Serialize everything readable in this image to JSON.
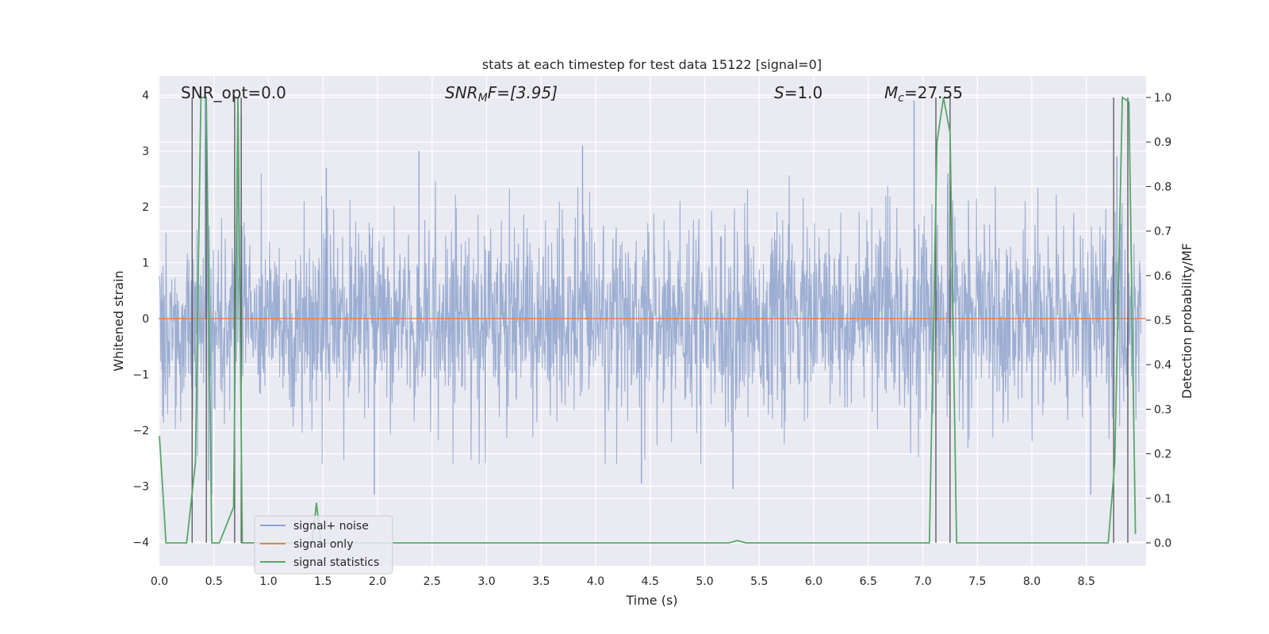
{
  "chart_data": {
    "type": "line",
    "title": "stats at each timestep for test data 15122 [signal=0]",
    "xlabel": "Time (s)",
    "ylabel": "Whitened strain",
    "y2label": "Detection probability/MF",
    "xlim": [
      0.0,
      9.0
    ],
    "ylim": [
      -4.4,
      4.3
    ],
    "y2lim": [
      -0.048,
      1.028
    ],
    "x_ticks": [
      "0.0",
      "0.5",
      "1.0",
      "1.5",
      "2.0",
      "2.5",
      "3.0",
      "3.5",
      "4.0",
      "4.5",
      "5.0",
      "5.5",
      "6.0",
      "6.5",
      "7.0",
      "7.5",
      "8.0",
      "8.5"
    ],
    "y_ticks": [
      "−4",
      "−3",
      "−2",
      "−1",
      "0",
      "1",
      "2",
      "3",
      "4"
    ],
    "y2_ticks": [
      "0.0",
      "0.1",
      "0.2",
      "0.3",
      "0.4",
      "0.5",
      "0.6",
      "0.7",
      "0.8",
      "0.9",
      "1.0"
    ],
    "grid": true,
    "legend_position": "lower-left",
    "annotations": {
      "snr_opt": "SNR_opt=0.0",
      "snr_mf": "SNR",
      "snr_mf_sub": "M",
      "snr_mf_rest": "F=[3.95]",
      "s_label": "S",
      "s_value": "=1.0",
      "mc_label": "M",
      "mc_sub": "c",
      "mc_value": "=27.55"
    },
    "series": [
      {
        "name": "signal+ noise",
        "color": "#8fa3cc",
        "description_values": "whitened noise strain, roughly gaussian with typical magnitude up to about ±2.5, occasional peaks near ±3",
        "amplitude_envelope": 1.55,
        "spikes": [
          {
            "x": 0.42,
            "y": 3.95
          },
          {
            "x": 0.45,
            "y": -2.9
          },
          {
            "x": 0.48,
            "y": -3.15
          },
          {
            "x": 0.72,
            "y": 2.75
          },
          {
            "x": 0.75,
            "y": 3.6
          },
          {
            "x": 1.53,
            "y": 2.7
          },
          {
            "x": 1.97,
            "y": -3.15
          },
          {
            "x": 2.38,
            "y": 3.0
          },
          {
            "x": 3.88,
            "y": 3.1
          },
          {
            "x": 4.42,
            "y": -2.95
          },
          {
            "x": 5.26,
            "y": -3.05
          },
          {
            "x": 6.92,
            "y": 3.9
          },
          {
            "x": 7.23,
            "y": 2.6
          },
          {
            "x": 8.54,
            "y": -3.15
          },
          {
            "x": 8.78,
            "y": 2.9
          }
        ]
      },
      {
        "name": "signal only",
        "color": "#dd8452",
        "values": "zero everywhere (no injected signal)"
      },
      {
        "name": "signal statistics",
        "color": "#55a868",
        "axis": "right",
        "x": [
          0.0,
          0.06,
          0.25,
          0.33,
          0.38,
          0.43,
          0.48,
          0.55,
          0.68,
          0.72,
          0.76,
          0.83,
          1.0,
          1.4,
          1.44,
          1.48,
          2.0,
          3.0,
          4.0,
          5.0,
          5.22,
          5.3,
          5.38,
          5.5,
          6.0,
          7.0,
          7.06,
          7.13,
          7.19,
          7.25,
          7.31,
          7.4,
          8.0,
          8.7,
          8.76,
          8.83,
          8.89,
          8.95
        ],
        "y": [
          0.24,
          0.0,
          0.0,
          0.18,
          1.0,
          1.0,
          0.0,
          0.0,
          0.08,
          1.0,
          0.0,
          0.0,
          0.0,
          0.0,
          0.09,
          0.0,
          0.0,
          0.0,
          0.0,
          0.0,
          0.0,
          0.005,
          0.0,
          0.0,
          0.0,
          0.0,
          0.0,
          0.9,
          1.0,
          0.92,
          0.0,
          0.0,
          0.0,
          0.0,
          0.18,
          1.0,
          0.99,
          0.02
        ]
      }
    ],
    "vertical_markers": [
      0.3,
      0.43,
      0.69,
      0.75,
      7.12,
      7.25,
      8.75,
      8.88
    ]
  },
  "legend": {
    "items": [
      {
        "label": "signal+ noise",
        "color": "#8fa3cc"
      },
      {
        "label": "signal only",
        "color": "#dd8452"
      },
      {
        "label": "signal statistics",
        "color": "#55a868"
      }
    ]
  }
}
